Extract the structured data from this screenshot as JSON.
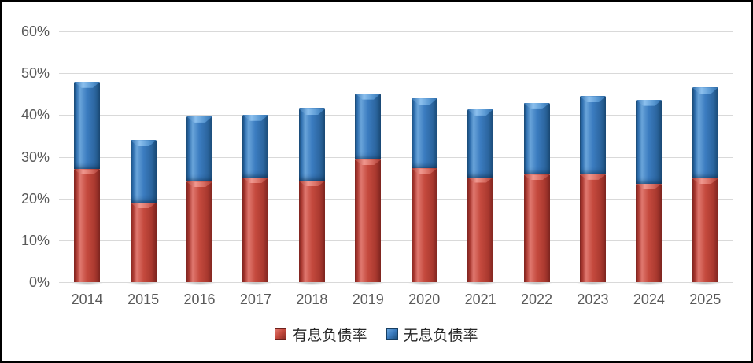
{
  "chart_data": {
    "type": "bar",
    "stacked": true,
    "title": "",
    "xlabel": "",
    "ylabel": "",
    "categories": [
      "2014",
      "2015",
      "2016",
      "2017",
      "2018",
      "2019",
      "2020",
      "2021",
      "2022",
      "2023",
      "2024",
      "2025"
    ],
    "series": [
      {
        "name": "有息负债率",
        "color": "#c0392b",
        "values": [
          27.0,
          19.0,
          24.0,
          25.0,
          24.2,
          29.3,
          27.2,
          25.1,
          25.7,
          25.8,
          23.6,
          24.8
        ]
      },
      {
        "name": "无息负债率",
        "color": "#2e74b5",
        "values": [
          21.0,
          15.0,
          15.7,
          15.1,
          17.3,
          15.9,
          16.8,
          16.3,
          17.2,
          18.7,
          20.1,
          21.8
        ]
      }
    ],
    "totals": [
      48.0,
      34.0,
      39.7,
      40.1,
      41.5,
      45.2,
      44.0,
      41.4,
      42.9,
      44.5,
      43.7,
      46.6
    ],
    "y_ticks": [
      "0%",
      "10%",
      "20%",
      "30%",
      "40%",
      "50%",
      "60%"
    ],
    "ylim": [
      0,
      60
    ],
    "grid": true,
    "legend_position": "bottom",
    "colors": {
      "gridline": "#d9d9d9",
      "axis_text": "#595959",
      "legend_text": "#262626",
      "background": "#ffffff",
      "frame_border": "#000000"
    }
  }
}
